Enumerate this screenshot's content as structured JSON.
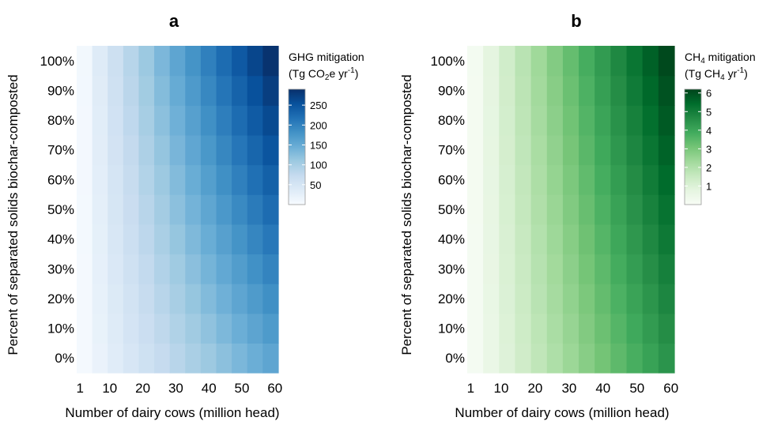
{
  "chart_data": [
    {
      "type": "heatmap",
      "panel_label": "a",
      "xlabel": "Number of dairy cows (million head)",
      "ylabel": "Percent of separated solids biochar-composted",
      "x_ticks": [
        "1",
        "10",
        "20",
        "30",
        "40",
        "50",
        "60"
      ],
      "y_ticks": [
        "0%",
        "10%",
        "20%",
        "30%",
        "40%",
        "50%",
        "60%",
        "70%",
        "80%",
        "90%",
        "100%"
      ],
      "x_range": [
        0,
        61
      ],
      "x_cell_centers": [
        1,
        6,
        11,
        16,
        21,
        26,
        31,
        36,
        41,
        46,
        51,
        56,
        61
      ],
      "y_values": [
        0,
        10,
        20,
        30,
        40,
        50,
        60,
        70,
        80,
        90,
        100
      ],
      "value_model": "v = x * (2.4 + 2.3 * p / 100)",
      "color_scale": {
        "name": "Blues",
        "min": 0,
        "max": 290,
        "colors": [
          "#f7fbff",
          "#deebf7",
          "#c6dbef",
          "#9ecae1",
          "#6baed6",
          "#4292c6",
          "#2171b5",
          "#08519c",
          "#08306b"
        ]
      },
      "legend": {
        "title_line1": "GHG mitigation",
        "title_line2_prefix": "(Tg CO",
        "title_line2_sub": "2",
        "title_line2_mid": "e yr",
        "title_line2_sup": "-1",
        "title_line2_suffix": ")",
        "ticks": [
          "50",
          "100",
          "150",
          "200",
          "250"
        ],
        "tick_values": [
          50,
          100,
          150,
          200,
          250
        ],
        "placement": "right"
      }
    },
    {
      "type": "heatmap",
      "panel_label": "b",
      "xlabel": "Number of dairy cows (million head)",
      "ylabel": "Percent of separated solids biochar-composted",
      "x_ticks": [
        "1",
        "10",
        "20",
        "30",
        "40",
        "50",
        "60"
      ],
      "y_ticks": [
        "0%",
        "10%",
        "20%",
        "30%",
        "40%",
        "50%",
        "60%",
        "70%",
        "80%",
        "90%",
        "100%"
      ],
      "x_range": [
        0,
        61
      ],
      "x_cell_centers": [
        1,
        6,
        11,
        16,
        21,
        26,
        31,
        36,
        41,
        46,
        51,
        56,
        61
      ],
      "y_values": [
        0,
        10,
        20,
        30,
        40,
        50,
        60,
        70,
        80,
        90,
        100
      ],
      "value_model": "v = x * (0.07 + 0.03 * p / 100)",
      "color_scale": {
        "name": "Greens",
        "min": 0,
        "max": 6.2,
        "colors": [
          "#f7fcf5",
          "#e5f5e0",
          "#c7e9c0",
          "#a1d99b",
          "#74c476",
          "#41ab5d",
          "#238b45",
          "#006d2c",
          "#00441b"
        ]
      },
      "legend": {
        "title_line1_prefix": "CH",
        "title_line1_sub": "4",
        "title_line1_suffix": " mitigation",
        "title_line2_prefix": "(Tg CH",
        "title_line2_sub": "4",
        "title_line2_mid": " yr",
        "title_line2_sup": "-1",
        "title_line2_suffix": ")",
        "ticks": [
          "1",
          "2",
          "3",
          "4",
          "5",
          "6"
        ],
        "tick_values": [
          1,
          2,
          3,
          4,
          5,
          6
        ],
        "placement": "right"
      }
    }
  ]
}
